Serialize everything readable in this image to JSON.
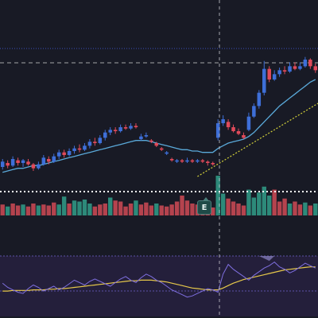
{
  "colors": {
    "background": "#181a25",
    "bull": "#3e6fd8",
    "bear": "#e04a5a",
    "volume_up": "#2d8a7a",
    "volume_down": "#b4434e",
    "moving_average": "#5aa9d9",
    "indicator_line": "#7f6fe0",
    "indicator_signal": "#e6c84a",
    "indicator_band": "#241f3b",
    "crosshair": "#c8c8d0",
    "grid_dotted": "#3a4dbb",
    "price_level": "#e0e0e0",
    "trend_projection": "#d4d23a"
  },
  "earnings_marker": {
    "label": "E",
    "icon": "earnings-flag-icon"
  },
  "chart_data": {
    "type": "candlestick",
    "candles": [
      {
        "o": 210,
        "c": 214,
        "h": 216,
        "l": 208
      },
      {
        "o": 213,
        "c": 211,
        "h": 215,
        "l": 209
      },
      {
        "o": 211,
        "c": 216,
        "h": 218,
        "l": 210
      },
      {
        "o": 215,
        "c": 213,
        "h": 217,
        "l": 211
      },
      {
        "o": 213,
        "c": 215,
        "h": 216,
        "l": 210
      },
      {
        "o": 214,
        "c": 212,
        "h": 216,
        "l": 211
      },
      {
        "o": 212,
        "c": 209,
        "h": 213,
        "l": 207
      },
      {
        "o": 209,
        "c": 212,
        "h": 214,
        "l": 208
      },
      {
        "o": 212,
        "c": 217,
        "h": 219,
        "l": 211
      },
      {
        "o": 216,
        "c": 214,
        "h": 218,
        "l": 212
      },
      {
        "o": 214,
        "c": 218,
        "h": 220,
        "l": 213
      },
      {
        "o": 218,
        "c": 221,
        "h": 223,
        "l": 216
      },
      {
        "o": 221,
        "c": 219,
        "h": 223,
        "l": 217
      },
      {
        "o": 219,
        "c": 222,
        "h": 224,
        "l": 218
      },
      {
        "o": 222,
        "c": 224,
        "h": 226,
        "l": 220
      },
      {
        "o": 224,
        "c": 223,
        "h": 227,
        "l": 221
      },
      {
        "o": 223,
        "c": 226,
        "h": 228,
        "l": 222
      },
      {
        "o": 226,
        "c": 229,
        "h": 231,
        "l": 224
      },
      {
        "o": 229,
        "c": 228,
        "h": 232,
        "l": 226
      },
      {
        "o": 228,
        "c": 232,
        "h": 234,
        "l": 227
      },
      {
        "o": 232,
        "c": 236,
        "h": 238,
        "l": 230
      },
      {
        "o": 236,
        "c": 238,
        "h": 240,
        "l": 234
      },
      {
        "o": 238,
        "c": 237,
        "h": 240,
        "l": 235
      },
      {
        "o": 237,
        "c": 240,
        "h": 242,
        "l": 236
      },
      {
        "o": 240,
        "c": 239,
        "h": 242,
        "l": 238
      },
      {
        "o": 239,
        "c": 241,
        "h": 243,
        "l": 238
      },
      {
        "o": 241,
        "c": 240,
        "h": 243,
        "l": 239
      },
      {
        "o": 231,
        "c": 233,
        "h": 235,
        "l": 230
      },
      {
        "o": 233,
        "c": 234,
        "h": 236,
        "l": 232
      },
      {
        "o": 230,
        "c": 229,
        "h": 231,
        "l": 228
      },
      {
        "o": 228,
        "c": 226,
        "h": 229,
        "l": 225
      },
      {
        "o": 224,
        "c": 223,
        "h": 225,
        "l": 222
      },
      {
        "o": 220,
        "c": 221,
        "h": 222,
        "l": 219
      },
      {
        "o": 216,
        "c": 215,
        "h": 217,
        "l": 214
      },
      {
        "o": 214,
        "c": 215,
        "h": 216,
        "l": 213
      },
      {
        "o": 215,
        "c": 214,
        "h": 216,
        "l": 213
      },
      {
        "o": 214,
        "c": 215,
        "h": 217,
        "l": 213
      },
      {
        "o": 215,
        "c": 214,
        "h": 216,
        "l": 213
      },
      {
        "o": 214,
        "c": 215,
        "h": 216,
        "l": 213
      },
      {
        "o": 215,
        "c": 214,
        "h": 216,
        "l": 213
      },
      {
        "o": 214,
        "c": 213,
        "h": 215,
        "l": 211
      },
      {
        "o": 213,
        "c": 212,
        "h": 214,
        "l": 211
      },
      {
        "o": 232,
        "c": 243,
        "h": 246,
        "l": 230
      },
      {
        "o": 243,
        "c": 246,
        "h": 249,
        "l": 241
      },
      {
        "o": 244,
        "c": 240,
        "h": 246,
        "l": 238
      },
      {
        "o": 240,
        "c": 237,
        "h": 242,
        "l": 236
      },
      {
        "o": 237,
        "c": 235,
        "h": 239,
        "l": 234
      },
      {
        "o": 234,
        "c": 232,
        "h": 236,
        "l": 231
      },
      {
        "o": 238,
        "c": 248,
        "h": 251,
        "l": 237
      },
      {
        "o": 248,
        "c": 256,
        "h": 258,
        "l": 247
      },
      {
        "o": 256,
        "c": 266,
        "h": 268,
        "l": 254
      },
      {
        "o": 266,
        "c": 284,
        "h": 290,
        "l": 264
      },
      {
        "o": 284,
        "c": 276,
        "h": 286,
        "l": 274
      },
      {
        "o": 276,
        "c": 280,
        "h": 283,
        "l": 275
      },
      {
        "o": 280,
        "c": 283,
        "h": 285,
        "l": 278
      },
      {
        "o": 283,
        "c": 282,
        "h": 286,
        "l": 280
      },
      {
        "o": 282,
        "c": 286,
        "h": 289,
        "l": 281
      },
      {
        "o": 286,
        "c": 284,
        "h": 289,
        "l": 283
      },
      {
        "o": 284,
        "c": 286,
        "h": 289,
        "l": 283
      },
      {
        "o": 286,
        "c": 291,
        "h": 293,
        "l": 285
      },
      {
        "o": 291,
        "c": 286,
        "h": 292,
        "l": 284
      },
      {
        "o": 286,
        "c": 283,
        "h": 288,
        "l": 281
      }
    ],
    "moving_average": [
      206,
      207,
      208,
      209,
      209,
      210,
      211,
      211,
      212,
      213,
      214,
      215,
      216,
      217,
      218,
      219,
      220,
      221,
      222,
      223,
      224,
      225,
      226,
      227,
      228,
      229,
      230,
      230,
      230,
      229,
      228,
      227,
      226,
      225,
      224,
      223,
      223,
      222,
      222,
      221,
      221,
      221,
      224,
      226,
      228,
      229,
      230,
      231,
      233,
      236,
      240,
      244,
      248,
      252,
      256,
      259,
      262,
      265,
      268,
      271,
      274,
      276
    ],
    "volume": [
      {
        "v": 0.55,
        "up": false
      },
      {
        "v": 0.45,
        "up": true
      },
      {
        "v": 0.6,
        "up": false
      },
      {
        "v": 0.5,
        "up": false
      },
      {
        "v": 0.55,
        "up": true
      },
      {
        "v": 0.45,
        "up": false
      },
      {
        "v": 0.6,
        "up": false
      },
      {
        "v": 0.5,
        "up": true
      },
      {
        "v": 0.55,
        "up": false
      },
      {
        "v": 0.5,
        "up": false
      },
      {
        "v": 0.65,
        "up": false
      },
      {
        "v": 0.55,
        "up": true
      },
      {
        "v": 0.95,
        "up": true
      },
      {
        "v": 0.6,
        "up": false
      },
      {
        "v": 0.75,
        "up": true
      },
      {
        "v": 0.7,
        "up": true
      },
      {
        "v": 0.8,
        "up": true
      },
      {
        "v": 0.6,
        "up": true
      },
      {
        "v": 0.45,
        "up": false
      },
      {
        "v": 0.55,
        "up": false
      },
      {
        "v": 0.6,
        "up": false
      },
      {
        "v": 0.9,
        "up": true
      },
      {
        "v": 0.75,
        "up": false
      },
      {
        "v": 0.7,
        "up": false
      },
      {
        "v": 0.45,
        "up": false
      },
      {
        "v": 0.6,
        "up": false
      },
      {
        "v": 0.75,
        "up": true
      },
      {
        "v": 0.55,
        "up": false
      },
      {
        "v": 0.65,
        "up": false
      },
      {
        "v": 0.5,
        "up": false
      },
      {
        "v": 0.6,
        "up": true
      },
      {
        "v": 0.5,
        "up": false
      },
      {
        "v": 0.45,
        "up": false
      },
      {
        "v": 0.55,
        "up": false
      },
      {
        "v": 0.7,
        "up": false
      },
      {
        "v": 1.0,
        "up": false
      },
      {
        "v": 0.75,
        "up": false
      },
      {
        "v": 0.6,
        "up": false
      },
      {
        "v": 0.55,
        "up": false
      },
      {
        "v": 0.5,
        "up": false
      },
      {
        "v": 0.45,
        "up": false
      },
      {
        "v": 0.4,
        "up": false
      },
      {
        "v": 2.0,
        "up": true
      },
      {
        "v": 1.1,
        "up": true
      },
      {
        "v": 0.85,
        "up": false
      },
      {
        "v": 0.7,
        "up": false
      },
      {
        "v": 0.6,
        "up": false
      },
      {
        "v": 0.5,
        "up": false
      },
      {
        "v": 1.3,
        "up": true
      },
      {
        "v": 0.9,
        "up": true
      },
      {
        "v": 1.15,
        "up": true
      },
      {
        "v": 1.45,
        "up": true
      },
      {
        "v": 1.0,
        "up": true
      },
      {
        "v": 1.3,
        "up": false
      },
      {
        "v": 0.7,
        "up": false
      },
      {
        "v": 0.85,
        "up": false
      },
      {
        "v": 0.6,
        "up": true
      },
      {
        "v": 0.7,
        "up": false
      },
      {
        "v": 0.55,
        "up": false
      },
      {
        "v": 0.65,
        "up": true
      },
      {
        "v": 0.5,
        "up": false
      },
      {
        "v": 0.6,
        "up": true
      }
    ],
    "indicator": [
      55,
      48,
      44,
      40,
      38,
      46,
      52,
      48,
      42,
      46,
      50,
      44,
      48,
      54,
      60,
      56,
      52,
      58,
      62,
      58,
      54,
      50,
      56,
      62,
      66,
      60,
      56,
      64,
      70,
      66,
      60,
      56,
      50,
      44,
      40,
      36,
      32,
      34,
      38,
      42,
      46,
      44,
      40,
      70,
      86,
      78,
      72,
      66,
      60,
      68,
      74,
      80,
      84,
      90,
      82,
      78,
      72,
      76,
      82,
      88,
      84,
      80
    ],
    "indicator_signal": [
      42,
      42,
      43,
      43,
      43,
      43,
      44,
      44,
      44,
      45,
      45,
      46,
      46,
      47,
      48,
      49,
      50,
      51,
      52,
      53,
      54,
      55,
      56,
      57,
      58,
      59,
      59,
      60,
      60,
      60,
      59,
      58,
      57,
      55,
      53,
      51,
      49,
      47,
      46,
      45,
      44,
      44,
      44,
      47,
      51,
      55,
      58,
      61,
      63,
      65,
      67,
      69,
      71,
      73,
      75,
      77,
      78,
      79,
      80,
      81,
      82,
      82
    ],
    "indicator_range": [
      0,
      100
    ],
    "price_range": [
      195,
      300
    ],
    "volume_range": [
      0,
      2.2
    ],
    "price_level": 291,
    "trend_projection": {
      "from_index": 42,
      "to_index": 61
    }
  }
}
